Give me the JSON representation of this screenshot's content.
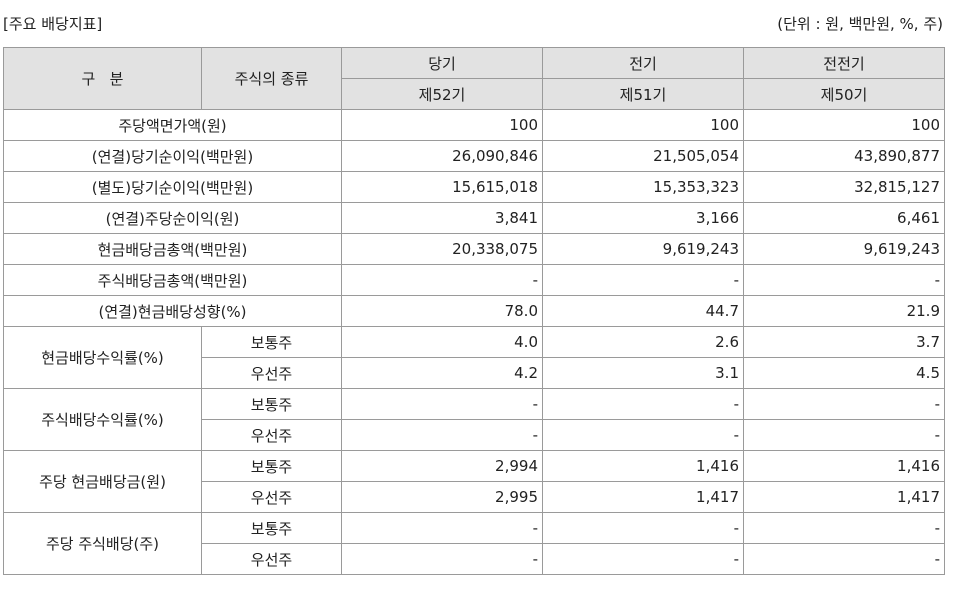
{
  "caption": {
    "title": "[주요 배당지표]",
    "unit": "(단위 : 원, 백만원, %, 주)"
  },
  "header": {
    "category": "구   분",
    "stock_type": "주식의 종류",
    "periods": [
      "당기",
      "전기",
      "전전기"
    ],
    "terms": [
      "제52기",
      "제51기",
      "제50기"
    ]
  },
  "rows": [
    {
      "label": "주당액면가액(원)",
      "values": [
        "100",
        "100",
        "100"
      ]
    },
    {
      "label": "(연결)당기순이익(백만원)",
      "values": [
        "26,090,846",
        "21,505,054",
        "43,890,877"
      ]
    },
    {
      "label": "(별도)당기순이익(백만원)",
      "values": [
        "15,615,018",
        "15,353,323",
        "32,815,127"
      ]
    },
    {
      "label": "(연결)주당순이익(원)",
      "values": [
        "3,841",
        "3,166",
        "6,461"
      ]
    },
    {
      "label": "현금배당금총액(백만원)",
      "values": [
        "20,338,075",
        "9,619,243",
        "9,619,243"
      ]
    },
    {
      "label": "주식배당금총액(백만원)",
      "values": [
        "-",
        "-",
        "-"
      ]
    },
    {
      "label": "(연결)현금배당성향(%)",
      "values": [
        "78.0",
        "44.7",
        "21.9"
      ]
    }
  ],
  "groups": [
    {
      "label": "현금배당수익률(%)",
      "subs": [
        {
          "type": "보통주",
          "values": [
            "4.0",
            "2.6",
            "3.7"
          ]
        },
        {
          "type": "우선주",
          "values": [
            "4.2",
            "3.1",
            "4.5"
          ]
        }
      ]
    },
    {
      "label": "주식배당수익률(%)",
      "subs": [
        {
          "type": "보통주",
          "values": [
            "-",
            "-",
            "-"
          ]
        },
        {
          "type": "우선주",
          "values": [
            "-",
            "-",
            "-"
          ]
        }
      ]
    },
    {
      "label": "주당 현금배당금(원)",
      "subs": [
        {
          "type": "보통주",
          "values": [
            "2,994",
            "1,416",
            "1,416"
          ]
        },
        {
          "type": "우선주",
          "values": [
            "2,995",
            "1,417",
            "1,417"
          ]
        }
      ]
    },
    {
      "label": "주당 주식배당(주)",
      "subs": [
        {
          "type": "보통주",
          "values": [
            "-",
            "-",
            "-"
          ]
        },
        {
          "type": "우선주",
          "values": [
            "-",
            "-",
            "-"
          ]
        }
      ]
    }
  ]
}
